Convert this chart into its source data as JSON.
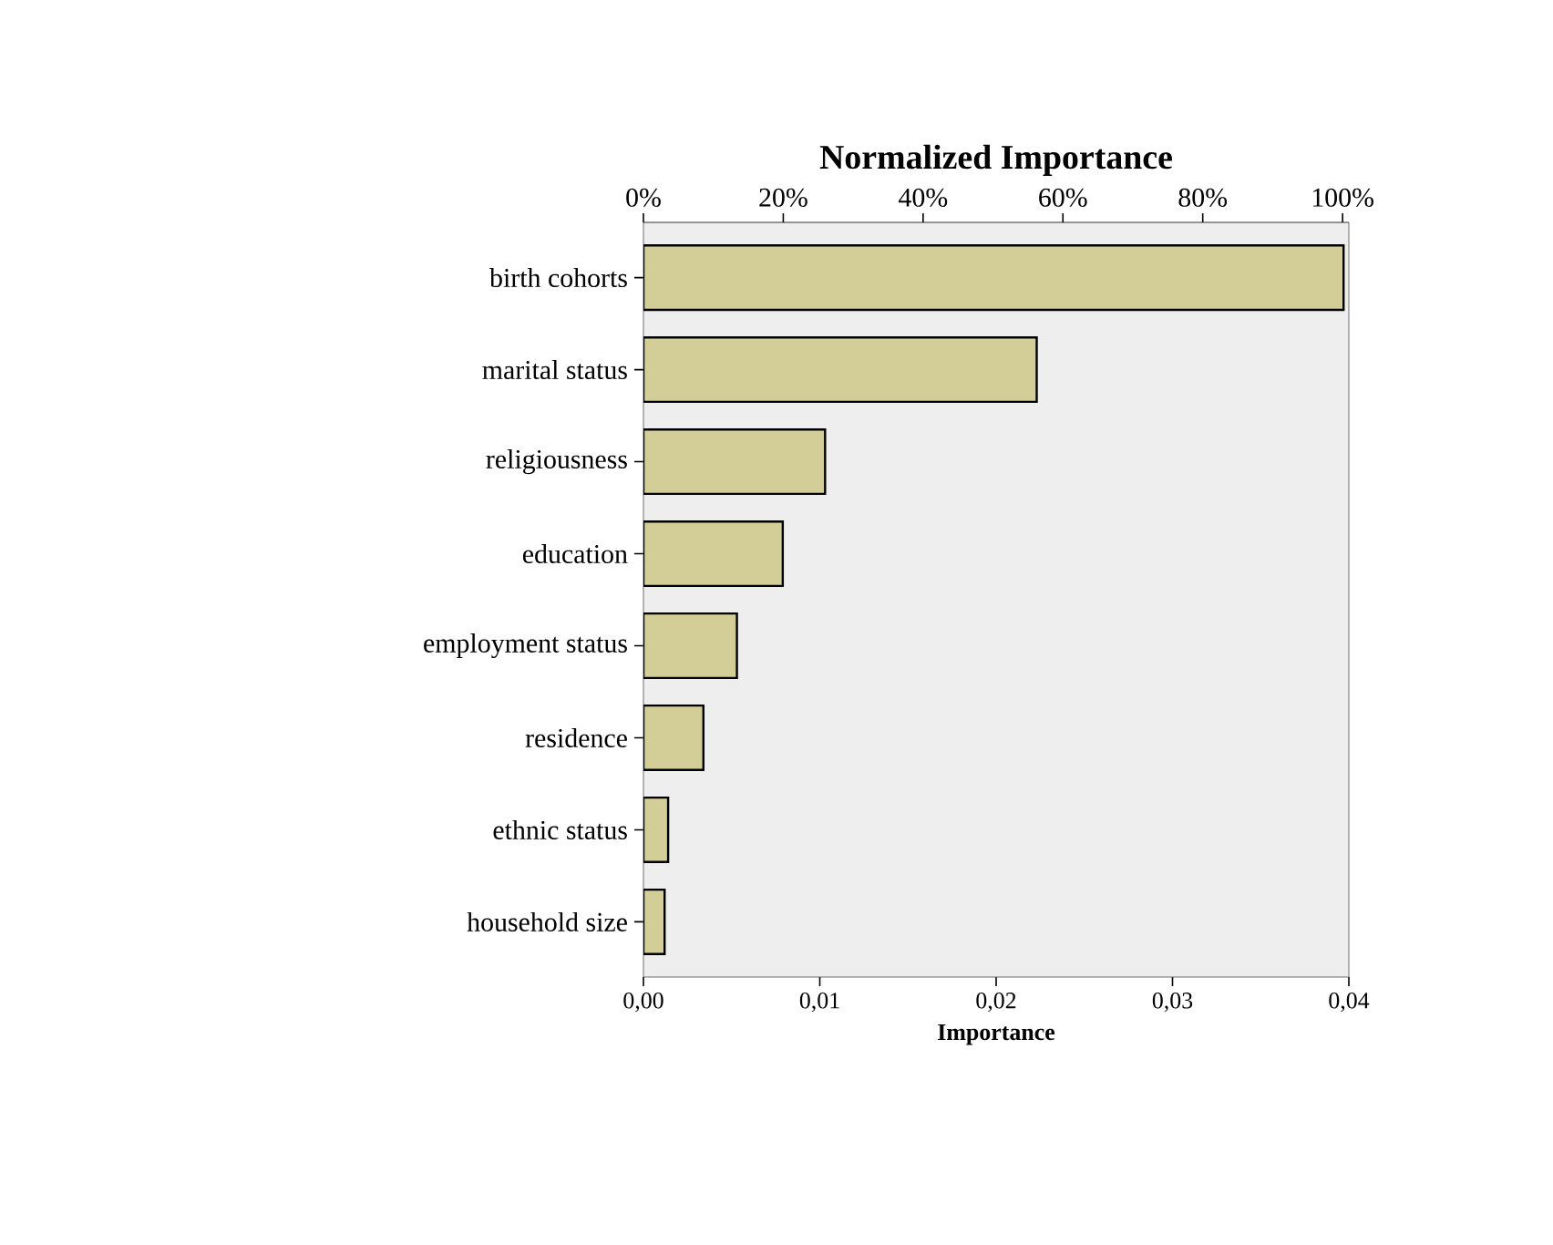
{
  "chart_data": {
    "type": "bar",
    "orientation": "horizontal",
    "categories": [
      "birth cohorts",
      "marital status",
      "religiousness",
      "education",
      "employment status",
      "residence",
      "ethnic status",
      "household size"
    ],
    "values": [
      0.0397,
      0.0223,
      0.0103,
      0.0079,
      0.0053,
      0.0034,
      0.0014,
      0.0012
    ],
    "color": "#d3cd97",
    "xlabel": "Importance",
    "x2label": "Normalized Importance",
    "xlim": [
      0,
      0.04
    ],
    "xticks": [
      {
        "value": 0,
        "label": "0,00"
      },
      {
        "value": 0.01,
        "label": "0,01"
      },
      {
        "value": 0.02,
        "label": "0,02"
      },
      {
        "value": 0.03,
        "label": "0,03"
      },
      {
        "value": 0.04,
        "label": "0,04"
      }
    ],
    "x2lim": [
      0,
      100.9
    ],
    "x2ticks": [
      {
        "value": 0,
        "label": "0%"
      },
      {
        "value": 20,
        "label": "20%"
      },
      {
        "value": 40,
        "label": "40%"
      },
      {
        "value": 60,
        "label": "60%"
      },
      {
        "value": 80,
        "label": "80%"
      },
      {
        "value": 100,
        "label": "100%"
      }
    ],
    "grid": false
  }
}
